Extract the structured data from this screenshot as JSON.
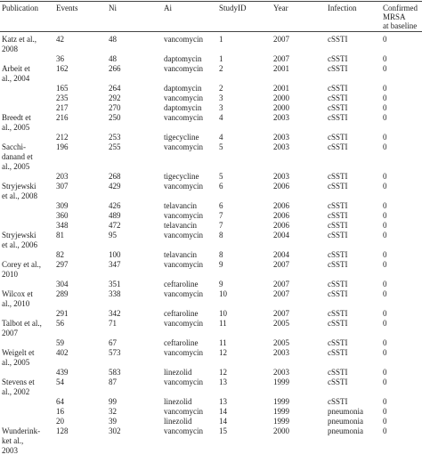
{
  "header": {
    "publication": "Publication",
    "events": "Events",
    "ni": "Ni",
    "ai": "Ai",
    "study_id": "StudyID",
    "year": "Year",
    "infection": "Infection",
    "mrsa_lines": [
      "Confirmed",
      "MRSA",
      "at baseline"
    ]
  },
  "rows": [
    {
      "pub": "Katz et al.,",
      "events": "42",
      "ni": "48",
      "ai": "vancomycin",
      "study": "1",
      "year": "2007",
      "infection": "cSSTI",
      "mrsa": "0"
    },
    {
      "pub": "2008",
      "events": "",
      "ni": "",
      "ai": "",
      "study": "",
      "year": "",
      "infection": "",
      "mrsa": ""
    },
    {
      "pub": "",
      "events": "36",
      "ni": "48",
      "ai": "daptomycin",
      "study": "1",
      "year": "2007",
      "infection": "cSSTI",
      "mrsa": "0"
    },
    {
      "pub": "Arbeit et",
      "events": "162",
      "ni": "266",
      "ai": "vancomycin",
      "study": "2",
      "year": "2001",
      "infection": "cSSTI",
      "mrsa": "0"
    },
    {
      "pub": "al., 2004",
      "events": "",
      "ni": "",
      "ai": "",
      "study": "",
      "year": "",
      "infection": "",
      "mrsa": ""
    },
    {
      "pub": "",
      "events": "165",
      "ni": "264",
      "ai": "daptomycin",
      "study": "2",
      "year": "2001",
      "infection": "cSSTI",
      "mrsa": "0"
    },
    {
      "pub": "",
      "events": "235",
      "ni": "292",
      "ai": "vancomycin",
      "study": "3",
      "year": "2000",
      "infection": "cSSTI",
      "mrsa": "0"
    },
    {
      "pub": "",
      "events": "217",
      "ni": "270",
      "ai": "daptomycin",
      "study": "3",
      "year": "2000",
      "infection": "cSSTI",
      "mrsa": "0"
    },
    {
      "pub": "Breedt et",
      "events": "216",
      "ni": "250",
      "ai": "vancomycin",
      "study": "4",
      "year": "2003",
      "infection": "cSSTI",
      "mrsa": "0"
    },
    {
      "pub": "al., 2005",
      "events": "",
      "ni": "",
      "ai": "",
      "study": "",
      "year": "",
      "infection": "",
      "mrsa": ""
    },
    {
      "pub": "",
      "events": "212",
      "ni": "253",
      "ai": "tigecycline",
      "study": "4",
      "year": "2003",
      "infection": "cSSTI",
      "mrsa": "0"
    },
    {
      "pub": "Sacchi-",
      "events": "196",
      "ni": "255",
      "ai": "vancomycin",
      "study": "5",
      "year": "2003",
      "infection": "cSSTI",
      "mrsa": "0"
    },
    {
      "pub": "danand et",
      "events": "",
      "ni": "",
      "ai": "",
      "study": "",
      "year": "",
      "infection": "",
      "mrsa": ""
    },
    {
      "pub": "al., 2005",
      "events": "",
      "ni": "",
      "ai": "",
      "study": "",
      "year": "",
      "infection": "",
      "mrsa": ""
    },
    {
      "pub": "",
      "events": "203",
      "ni": "268",
      "ai": "tigecycline",
      "study": "5",
      "year": "2003",
      "infection": "cSSTI",
      "mrsa": "0"
    },
    {
      "pub": "Stryjewski",
      "events": "307",
      "ni": "429",
      "ai": "vancomycin",
      "study": "6",
      "year": "2006",
      "infection": "cSSTI",
      "mrsa": "0"
    },
    {
      "pub": "et al., 2008",
      "events": "",
      "ni": "",
      "ai": "",
      "study": "",
      "year": "",
      "infection": "",
      "mrsa": ""
    },
    {
      "pub": "",
      "events": "309",
      "ni": "426",
      "ai": "telavancin",
      "study": "6",
      "year": "2006",
      "infection": "cSSTI",
      "mrsa": "0"
    },
    {
      "pub": "",
      "events": "360",
      "ni": "489",
      "ai": "vancomycin",
      "study": "7",
      "year": "2006",
      "infection": "cSSTI",
      "mrsa": "0"
    },
    {
      "pub": "",
      "events": "348",
      "ni": "472",
      "ai": "telavancin",
      "study": "7",
      "year": "2006",
      "infection": "cSSTI",
      "mrsa": "0"
    },
    {
      "pub": "Stryjewski",
      "events": "81",
      "ni": "95",
      "ai": "vancomycin",
      "study": "8",
      "year": "2004",
      "infection": "cSSTI",
      "mrsa": "0"
    },
    {
      "pub": "et al., 2006",
      "events": "",
      "ni": "",
      "ai": "",
      "study": "",
      "year": "",
      "infection": "",
      "mrsa": ""
    },
    {
      "pub": "",
      "events": "82",
      "ni": "100",
      "ai": "telavancin",
      "study": "8",
      "year": "2004",
      "infection": "cSSTI",
      "mrsa": "0"
    },
    {
      "pub": "Corey et al.,",
      "events": "297",
      "ni": "347",
      "ai": "vancomycin",
      "study": "9",
      "year": "2007",
      "infection": "cSSTI",
      "mrsa": "0"
    },
    {
      "pub": "2010",
      "events": "",
      "ni": "",
      "ai": "",
      "study": "",
      "year": "",
      "infection": "",
      "mrsa": ""
    },
    {
      "pub": "",
      "events": "304",
      "ni": "351",
      "ai": "ceftaroline",
      "study": "9",
      "year": "2007",
      "infection": "cSSTI",
      "mrsa": "0"
    },
    {
      "pub": "Wilcox et",
      "events": "289",
      "ni": "338",
      "ai": "vancomycin",
      "study": "10",
      "year": "2007",
      "infection": "cSSTI",
      "mrsa": "0"
    },
    {
      "pub": "al., 2010",
      "events": "",
      "ni": "",
      "ai": "",
      "study": "",
      "year": "",
      "infection": "",
      "mrsa": ""
    },
    {
      "pub": "",
      "events": "291",
      "ni": "342",
      "ai": "ceftaroline",
      "study": "10",
      "year": "2007",
      "infection": "cSSTI",
      "mrsa": "0"
    },
    {
      "pub": "Talbot et al.,",
      "events": "56",
      "ni": "71",
      "ai": "vancomycin",
      "study": "11",
      "year": "2005",
      "infection": "cSSTI",
      "mrsa": "0"
    },
    {
      "pub": "2007",
      "events": "",
      "ni": "",
      "ai": "",
      "study": "",
      "year": "",
      "infection": "",
      "mrsa": ""
    },
    {
      "pub": "",
      "events": "59",
      "ni": "67",
      "ai": "ceftaroline",
      "study": "11",
      "year": "2005",
      "infection": "cSSTI",
      "mrsa": "0"
    },
    {
      "pub": "Weigelt et",
      "events": "402",
      "ni": "573",
      "ai": "vancomycin",
      "study": "12",
      "year": "2003",
      "infection": "cSSTI",
      "mrsa": "0"
    },
    {
      "pub": "al., 2005",
      "events": "",
      "ni": "",
      "ai": "",
      "study": "",
      "year": "",
      "infection": "",
      "mrsa": ""
    },
    {
      "pub": "",
      "events": "439",
      "ni": "583",
      "ai": "linezolid",
      "study": "12",
      "year": "2003",
      "infection": "cSSTI",
      "mrsa": "0"
    },
    {
      "pub": "Stevens et",
      "events": "54",
      "ni": "87",
      "ai": "vancomycin",
      "study": "13",
      "year": "1999",
      "infection": "cSSTI",
      "mrsa": "0"
    },
    {
      "pub": "al., 2002",
      "events": "",
      "ni": "",
      "ai": "",
      "study": "",
      "year": "",
      "infection": "",
      "mrsa": ""
    },
    {
      "pub": "",
      "events": "64",
      "ni": "99",
      "ai": "linezolid",
      "study": "13",
      "year": "1999",
      "infection": "cSSTI",
      "mrsa": "0"
    },
    {
      "pub": "",
      "events": "16",
      "ni": "32",
      "ai": "vancomycin",
      "study": "14",
      "year": "1999",
      "infection": "pneumonia",
      "mrsa": "0"
    },
    {
      "pub": "",
      "events": "20",
      "ni": "39",
      "ai": "linezolid",
      "study": "14",
      "year": "1999",
      "infection": "pneumonia",
      "mrsa": "0"
    },
    {
      "pub": "Wunderink-",
      "events": "128",
      "ni": "302",
      "ai": "vancomycin",
      "study": "15",
      "year": "2000",
      "infection": "pneumonia",
      "mrsa": "0"
    },
    {
      "pub": "ket al.,",
      "events": "",
      "ni": "",
      "ai": "",
      "study": "",
      "year": "",
      "infection": "",
      "mrsa": ""
    },
    {
      "pub": "2003",
      "events": "",
      "ni": "",
      "ai": "",
      "study": "",
      "year": "",
      "infection": "",
      "mrsa": ""
    }
  ]
}
